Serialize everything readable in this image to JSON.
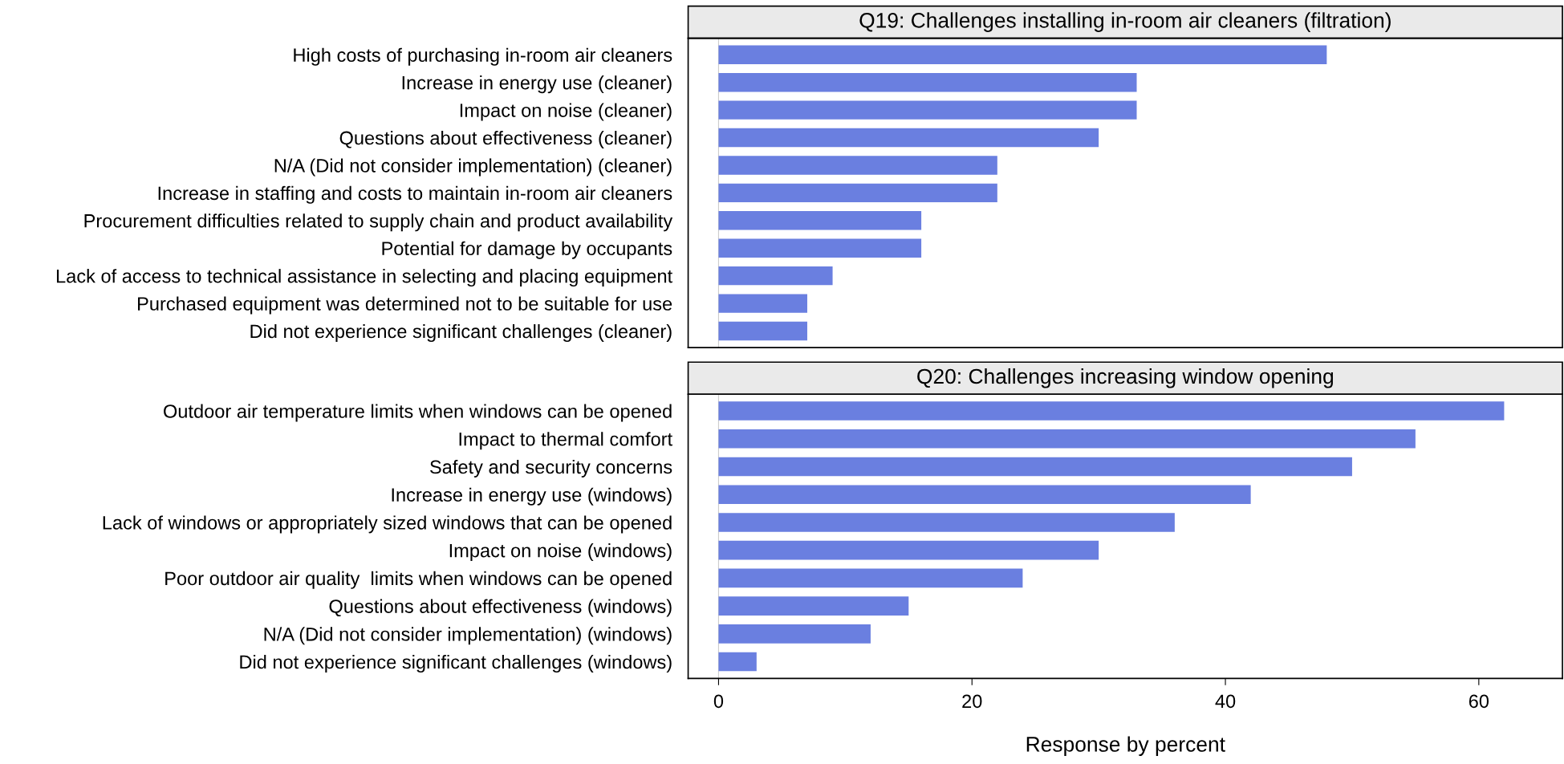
{
  "chart_data": [
    {
      "type": "bar",
      "orientation": "horizontal",
      "title": "Q19: Challenges installing in-room air cleaners (filtration)",
      "categories": [
        "High costs of purchasing in-room air cleaners",
        "Increase in energy use (cleaner)",
        "Impact on noise (cleaner)",
        "Questions about effectiveness (cleaner)",
        "N/A (Did not consider implementation) (cleaner)",
        "Increase in staffing and costs to maintain in-room air cleaners",
        "Procurement difficulties related to supply chain and product availability",
        "Potential for damage by occupants",
        "Lack of access to technical assistance in selecting and placing equipment",
        "Purchased equipment was determined not to be suitable for use",
        "Did not experience significant challenges (cleaner)"
      ],
      "values": [
        48,
        33,
        33,
        30,
        22,
        22,
        16,
        16,
        9,
        7,
        7
      ],
      "color": "#6a7fe0",
      "xlim": [
        -2.4,
        66.6
      ],
      "xticks": [
        0,
        20,
        40,
        60
      ],
      "tick_labels": "y",
      "grid": false,
      "legend": false,
      "ref_lines": [
        {
          "axis": "x",
          "value": 0,
          "color": "#cccccc"
        }
      ]
    },
    {
      "type": "bar",
      "orientation": "horizontal",
      "title": "Q20: Challenges increasing window opening",
      "xlabel": "Response by percent",
      "categories": [
        "Outdoor air temperature limits when windows can be opened",
        "Impact to thermal comfort",
        "Safety and security concerns",
        "Increase in energy use (windows)",
        "Lack of windows or appropriately sized windows that can be opened",
        "Impact on noise (windows)",
        "Poor outdoor air quality  limits when windows can be opened",
        "Questions about effectiveness (windows)",
        "N/A (Did not consider implementation) (windows)",
        "Did not experience significant challenges (windows)"
      ],
      "values": [
        62,
        55,
        50,
        42,
        36,
        30,
        24,
        15,
        12,
        3
      ],
      "color": "#6a7fe0",
      "xlim": [
        -2.4,
        66.6
      ],
      "xticks": [
        0,
        20,
        40,
        60
      ],
      "grid": false,
      "legend": false,
      "ref_lines": [
        {
          "axis": "x",
          "value": 0,
          "color": "#cccccc"
        }
      ]
    }
  ]
}
